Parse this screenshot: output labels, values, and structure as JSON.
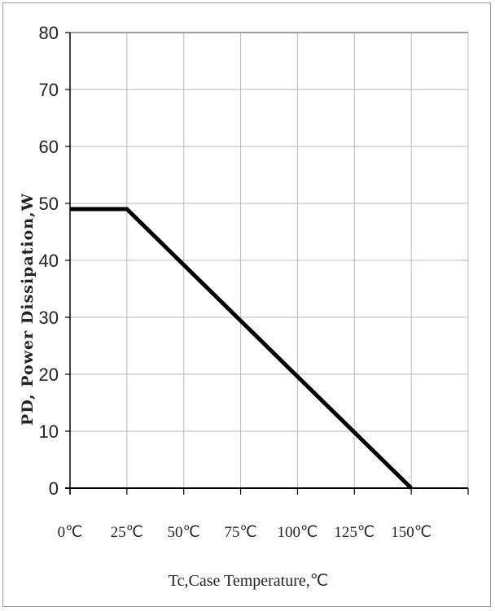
{
  "chart_data": {
    "type": "line",
    "title": "",
    "xlabel": "Tc,Case Temperature,℃",
    "ylabel": "PD, Power Dissipation,W",
    "x_ticks": [
      "0℃",
      "25℃",
      "50℃",
      "75℃",
      "100℃",
      "125℃",
      "150℃"
    ],
    "y_ticks": [
      "80",
      "70",
      "60",
      "50",
      "40",
      "30",
      "20",
      "10",
      "0"
    ],
    "xlim": [
      0,
      175
    ],
    "ylim": [
      0,
      80
    ],
    "grid": true,
    "series": [
      {
        "x": [
          0,
          25,
          150
        ],
        "y": [
          49,
          49,
          0
        ],
        "color": "#000000"
      }
    ]
  }
}
